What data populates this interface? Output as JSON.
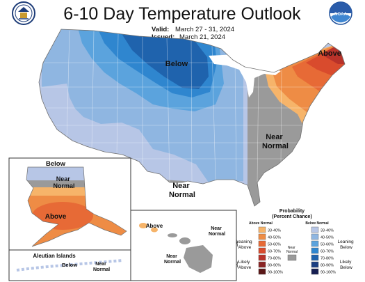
{
  "title": "6-10 Day Temperature Outlook",
  "valid_label": "Valid:",
  "valid_value": "March 27 - 31, 2024",
  "issued_label": "Issued:",
  "issued_value": "March 21, 2024",
  "logos": {
    "left": {
      "icon": "commerce-seal-icon",
      "text": "U.S. DEPARTMENT OF COMMERCE"
    },
    "right": {
      "icon": "noaa-logo-icon",
      "text": "NOAA"
    }
  },
  "region_labels": {
    "conus_below": "Below",
    "conus_above": "Above",
    "conus_near_normal_east": "Near Normal",
    "conus_near_normal_south": "Near Normal",
    "alaska_below": "Below",
    "alaska_near_normal": "Near Normal",
    "alaska_above": "Above",
    "aleutian_title": "Aleutian Islands",
    "aleutian_below": "Below",
    "aleutian_near_normal": "Near Normal",
    "hawaii_above": "Above",
    "hawaii_near_normal_1": "Near Normal",
    "hawaii_near_normal_2": "Near Normal"
  },
  "legend": {
    "title": "Probability",
    "subtitle": "(Percent Chance)",
    "above_header": "Above Normal",
    "below_header": "Below Normal",
    "leaning_above": "Leaning Above",
    "likely_above": "Likely Above",
    "near_normal": "Near Normal",
    "leaning_below": "Leaning Below",
    "likely_below": "Likely Below",
    "above_bins": [
      {
        "label": "33-40%",
        "color": "#f6b46a"
      },
      {
        "label": "40-50%",
        "color": "#ee8c45"
      },
      {
        "label": "50-60%",
        "color": "#e76a36"
      },
      {
        "label": "60-70%",
        "color": "#d94b2d"
      },
      {
        "label": "70-80%",
        "color": "#b8322a"
      },
      {
        "label": "80-90%",
        "color": "#8a2424"
      },
      {
        "label": "90-100%",
        "color": "#5a1616"
      }
    ],
    "below_bins": [
      {
        "label": "33-40%",
        "color": "#b7c6e6"
      },
      {
        "label": "40-50%",
        "color": "#8fb6e1"
      },
      {
        "label": "50-60%",
        "color": "#5ba3dd"
      },
      {
        "label": "60-70%",
        "color": "#2f86cf"
      },
      {
        "label": "70-80%",
        "color": "#1f63ad"
      },
      {
        "label": "80-90%",
        "color": "#1b3f82"
      },
      {
        "label": "90-100%",
        "color": "#161e52"
      }
    ],
    "near_color": "#9a9a9a"
  },
  "colors": {
    "below_33_40": "#b7c6e6",
    "below_40_50": "#8fb6e1",
    "below_50_60": "#5ba3dd",
    "below_60_70": "#2f86cf",
    "below_70_80": "#1f63ad",
    "near_normal": "#9a9a9a",
    "above_33_40": "#f6b46a",
    "above_40_50": "#ee8c45",
    "above_50_60": "#e76a36",
    "above_60_70": "#d94b2d",
    "above_70_80": "#b8322a"
  }
}
